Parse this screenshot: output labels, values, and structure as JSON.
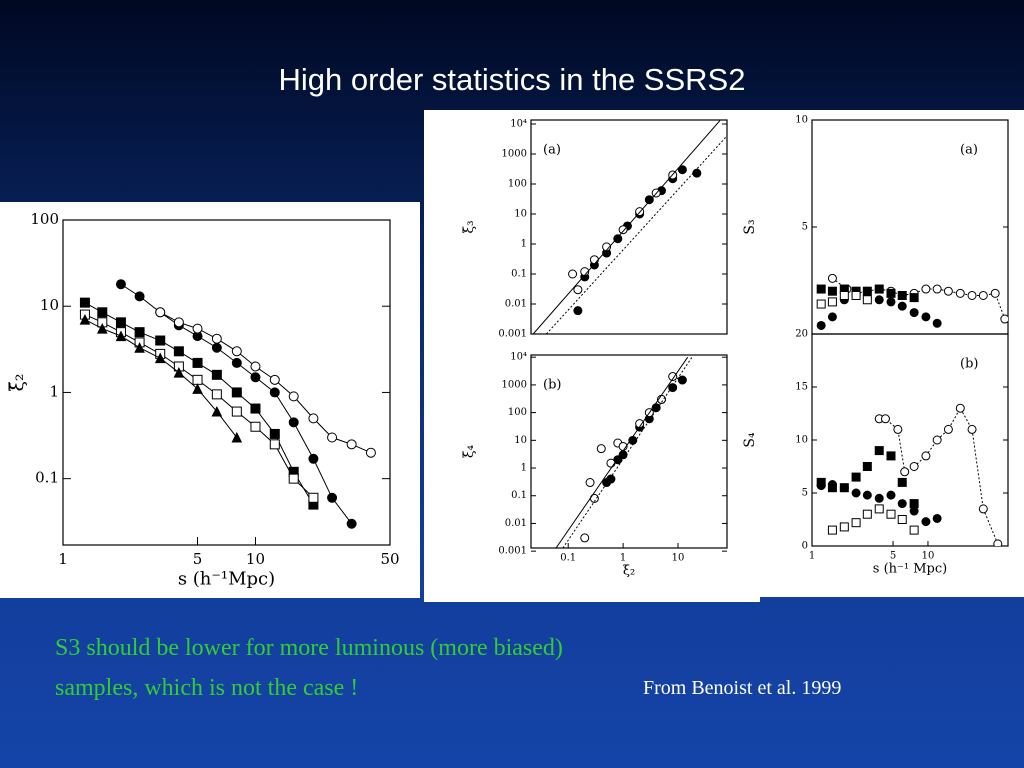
{
  "slide": {
    "title": "High order statistics in the SSRS2",
    "caption": "S3 should be lower for more luminous (more biased) samples, which is not the case !",
    "credit": "From Benoist et al. 1999"
  },
  "chart_data": [
    {
      "type": "scatter",
      "xlog": true,
      "ylog": true,
      "xlabel": "s (h⁻¹Mpc)",
      "ylabel": "ξ̄₂",
      "xlim": [
        1,
        50
      ],
      "ylim": [
        0.017,
        100
      ],
      "xticks": [
        1,
        5,
        10,
        50
      ],
      "yticks": [
        0.1,
        1,
        10,
        100
      ],
      "series": [
        {
          "marker": "filled-circle",
          "line": "solid",
          "color": "#000000",
          "x": [
            2,
            2.5,
            3.2,
            4,
            5,
            6.3,
            8,
            10,
            12.6,
            15.8,
            20,
            25,
            31.6
          ],
          "values": [
            18,
            13,
            8.5,
            6,
            4.5,
            3.3,
            2.2,
            1.5,
            1.0,
            0.45,
            0.17,
            0.06,
            0.03
          ]
        },
        {
          "marker": "open-circle",
          "line": "solid",
          "color": "#000000",
          "x": [
            3.2,
            4,
            5,
            6.3,
            8,
            10,
            12.6,
            15.8,
            20,
            25,
            31.6,
            39.8
          ],
          "values": [
            8.5,
            6.5,
            5.5,
            4.2,
            3,
            2,
            1.4,
            0.9,
            0.5,
            0.3,
            0.25,
            0.2
          ]
        },
        {
          "marker": "filled-square",
          "line": "solid",
          "color": "#000000",
          "x": [
            1.3,
            1.6,
            2,
            2.5,
            3.2,
            4,
            5,
            6.3,
            8,
            10,
            12.6,
            15.8,
            20
          ],
          "values": [
            11,
            8.5,
            6.5,
            5,
            4,
            3,
            2.2,
            1.6,
            1,
            0.65,
            0.33,
            0.12,
            0.05
          ]
        },
        {
          "marker": "open-square",
          "line": "solid",
          "color": "#000000",
          "x": [
            1.3,
            1.6,
            2,
            2.5,
            3.2,
            4,
            5,
            6.3,
            8,
            10,
            12.6,
            15.8,
            20
          ],
          "values": [
            8,
            6.5,
            5,
            3.8,
            2.8,
            2,
            1.4,
            0.95,
            0.6,
            0.4,
            0.25,
            0.1,
            0.06
          ]
        },
        {
          "marker": "filled-triangle",
          "line": "solid",
          "color": "#000000",
          "x": [
            1.3,
            1.6,
            2,
            2.5,
            3.2,
            4,
            5,
            6.3,
            8
          ],
          "values": [
            7,
            5.5,
            4.5,
            3.3,
            2.5,
            1.7,
            1.1,
            0.6,
            0.3
          ]
        }
      ]
    },
    {
      "type": "scatter",
      "xlog": true,
      "ylog": true,
      "ylabel": "ξ̄₃",
      "annotation": "(a)",
      "xlim": [
        0.021,
        78
      ],
      "ylim": [
        0.001,
        13600
      ],
      "yticks": [
        0.001,
        0.01,
        0.1,
        1,
        10,
        100,
        1000,
        {
          "value": 10000,
          "label": "10⁴"
        }
      ],
      "series": [
        {
          "marker": "filled-circle",
          "color": "#000000",
          "x": [
            0.15,
            0.2,
            0.3,
            0.5,
            0.8,
            1.2,
            2,
            3,
            5,
            8,
            12,
            22
          ],
          "values": [
            0.006,
            0.08,
            0.2,
            0.5,
            1.5,
            4,
            10,
            30,
            60,
            150,
            300,
            230
          ]
        },
        {
          "marker": "open-circle",
          "color": "#000000",
          "x": [
            0.12,
            0.15,
            0.2,
            0.3,
            0.5,
            1,
            2,
            4,
            8
          ],
          "values": [
            0.1,
            0.03,
            0.12,
            0.3,
            0.8,
            3,
            12,
            50,
            200
          ]
        },
        {
          "marker": "none",
          "line": "solid",
          "color": "#000000",
          "x": [
            0.023,
            58
          ],
          "values": [
            0.001,
            13000
          ]
        },
        {
          "marker": "none",
          "line": "dotted",
          "color": "#000000",
          "x": [
            0.04,
            78
          ],
          "values": [
            0.001,
            4000
          ]
        }
      ]
    },
    {
      "type": "scatter",
      "xlog": true,
      "ylog": true,
      "xlabel": "ξ̄₂",
      "ylabel": "ξ̄₄",
      "annotation": "(b)",
      "xlim": [
        0.021,
        78
      ],
      "ylim": [
        0.0013,
        12000
      ],
      "xticks": [
        0.1,
        1,
        10
      ],
      "yticks": [
        0.001,
        0.01,
        0.1,
        1,
        10,
        100,
        1000,
        {
          "value": 10000,
          "label": "10⁴"
        }
      ],
      "series": [
        {
          "marker": "filled-circle",
          "color": "#000000",
          "x": [
            0.5,
            0.6,
            0.8,
            1,
            1.5,
            2,
            3,
            4,
            5,
            8,
            12
          ],
          "values": [
            0.3,
            0.4,
            2,
            3,
            10,
            30,
            60,
            150,
            300,
            800,
            1500
          ]
        },
        {
          "marker": "open-circle",
          "color": "#000000",
          "x": [
            0.2,
            0.25,
            0.3,
            0.4,
            0.6,
            0.8,
            1,
            2,
            3,
            5,
            8
          ],
          "values": [
            0.003,
            0.3,
            0.08,
            5,
            1.5,
            8,
            6,
            40,
            100,
            300,
            2000
          ]
        },
        {
          "marker": "none",
          "line": "solid",
          "color": "#000000",
          "x": [
            0.06,
            15
          ],
          "values": [
            0.0013,
            10000
          ]
        },
        {
          "marker": "none",
          "line": "dotted",
          "color": "#000000",
          "x": [
            0.08,
            18
          ],
          "values": [
            0.0013,
            10000
          ]
        }
      ]
    },
    {
      "type": "scatter",
      "xlog": true,
      "ylog": false,
      "ylabel": "S₃",
      "annotation": "(a)",
      "xlim": [
        1,
        49
      ],
      "ylim": [
        0,
        10
      ],
      "yticks": [
        5,
        10
      ],
      "series": [
        {
          "marker": "filled-circle",
          "color": "#000000",
          "x": [
            1.2,
            1.5,
            1.9,
            2.4,
            3,
            3.8,
            4.8,
            6,
            7.6,
            9.6,
            12
          ],
          "values": [
            0.4,
            0.8,
            1.6,
            1.8,
            1.7,
            1.6,
            1.5,
            1.3,
            1.0,
            0.8,
            0.5
          ]
        },
        {
          "marker": "open-circle",
          "line": "dotted",
          "color": "#000000",
          "x": [
            1.5,
            2,
            2.4,
            3,
            3.8,
            4.8,
            6,
            7.6,
            9.6,
            12,
            15,
            19,
            24,
            30,
            38,
            46
          ],
          "values": [
            2.6,
            2.1,
            1.9,
            2.0,
            2.1,
            2.0,
            1.8,
            1.9,
            2.1,
            2.1,
            2.0,
            1.9,
            1.8,
            1.8,
            1.9,
            0.7
          ]
        },
        {
          "marker": "filled-square",
          "color": "#000000",
          "x": [
            1.2,
            1.5,
            1.9,
            2.4,
            3,
            3.8,
            4.8,
            6,
            7.6
          ],
          "values": [
            2.1,
            2.0,
            2.1,
            2.0,
            2.0,
            2.1,
            1.9,
            1.8,
            1.7
          ]
        },
        {
          "marker": "open-square",
          "color": "#000000",
          "x": [
            1.2,
            1.5,
            1.9,
            2.4,
            3
          ],
          "values": [
            1.4,
            1.5,
            1.8,
            1.8,
            1.6
          ]
        }
      ]
    },
    {
      "type": "scatter",
      "xlog": true,
      "ylog": false,
      "xlabel": "s (h⁻¹ Mpc)",
      "ylabel": "S₄",
      "annotation": "(b)",
      "xlim": [
        1,
        49
      ],
      "ylim": [
        0,
        20
      ],
      "xticks": [
        1,
        5,
        10
      ],
      "yticks": [
        0,
        5,
        10,
        15,
        20
      ],
      "series": [
        {
          "marker": "filled-square",
          "color": "#000000",
          "x": [
            1.2,
            1.5,
            1.9,
            2.4,
            3,
            3.8,
            4.8,
            6,
            7.6
          ],
          "values": [
            6,
            5.5,
            5.5,
            6.5,
            7.5,
            9,
            8.5,
            6,
            4
          ]
        },
        {
          "marker": "open-circle",
          "line": "dotted",
          "color": "#000000",
          "x": [
            3.8,
            4.3,
            5.5,
            6.3,
            7.6,
            9.6,
            12,
            15,
            19,
            24,
            30,
            40
          ],
          "values": [
            12,
            12,
            11,
            7,
            7.5,
            8.5,
            10,
            11,
            13,
            11,
            3.5,
            0.2
          ]
        },
        {
          "marker": "filled-circle",
          "color": "#000000",
          "x": [
            1.2,
            1.5,
            1.9,
            2.4,
            3,
            3.8,
            4.8,
            6,
            7.6,
            9.6,
            12
          ],
          "values": [
            5.7,
            5.8,
            5.5,
            5,
            4.8,
            4.5,
            4.8,
            4,
            3.3,
            2.3,
            2.6
          ]
        },
        {
          "marker": "open-square",
          "color": "#000000",
          "x": [
            1.5,
            1.9,
            2.4,
            3,
            3.8,
            4.8,
            6,
            7.6
          ],
          "values": [
            1.5,
            1.8,
            2.2,
            3,
            3.5,
            3,
            2.5,
            1.5
          ]
        }
      ]
    }
  ]
}
